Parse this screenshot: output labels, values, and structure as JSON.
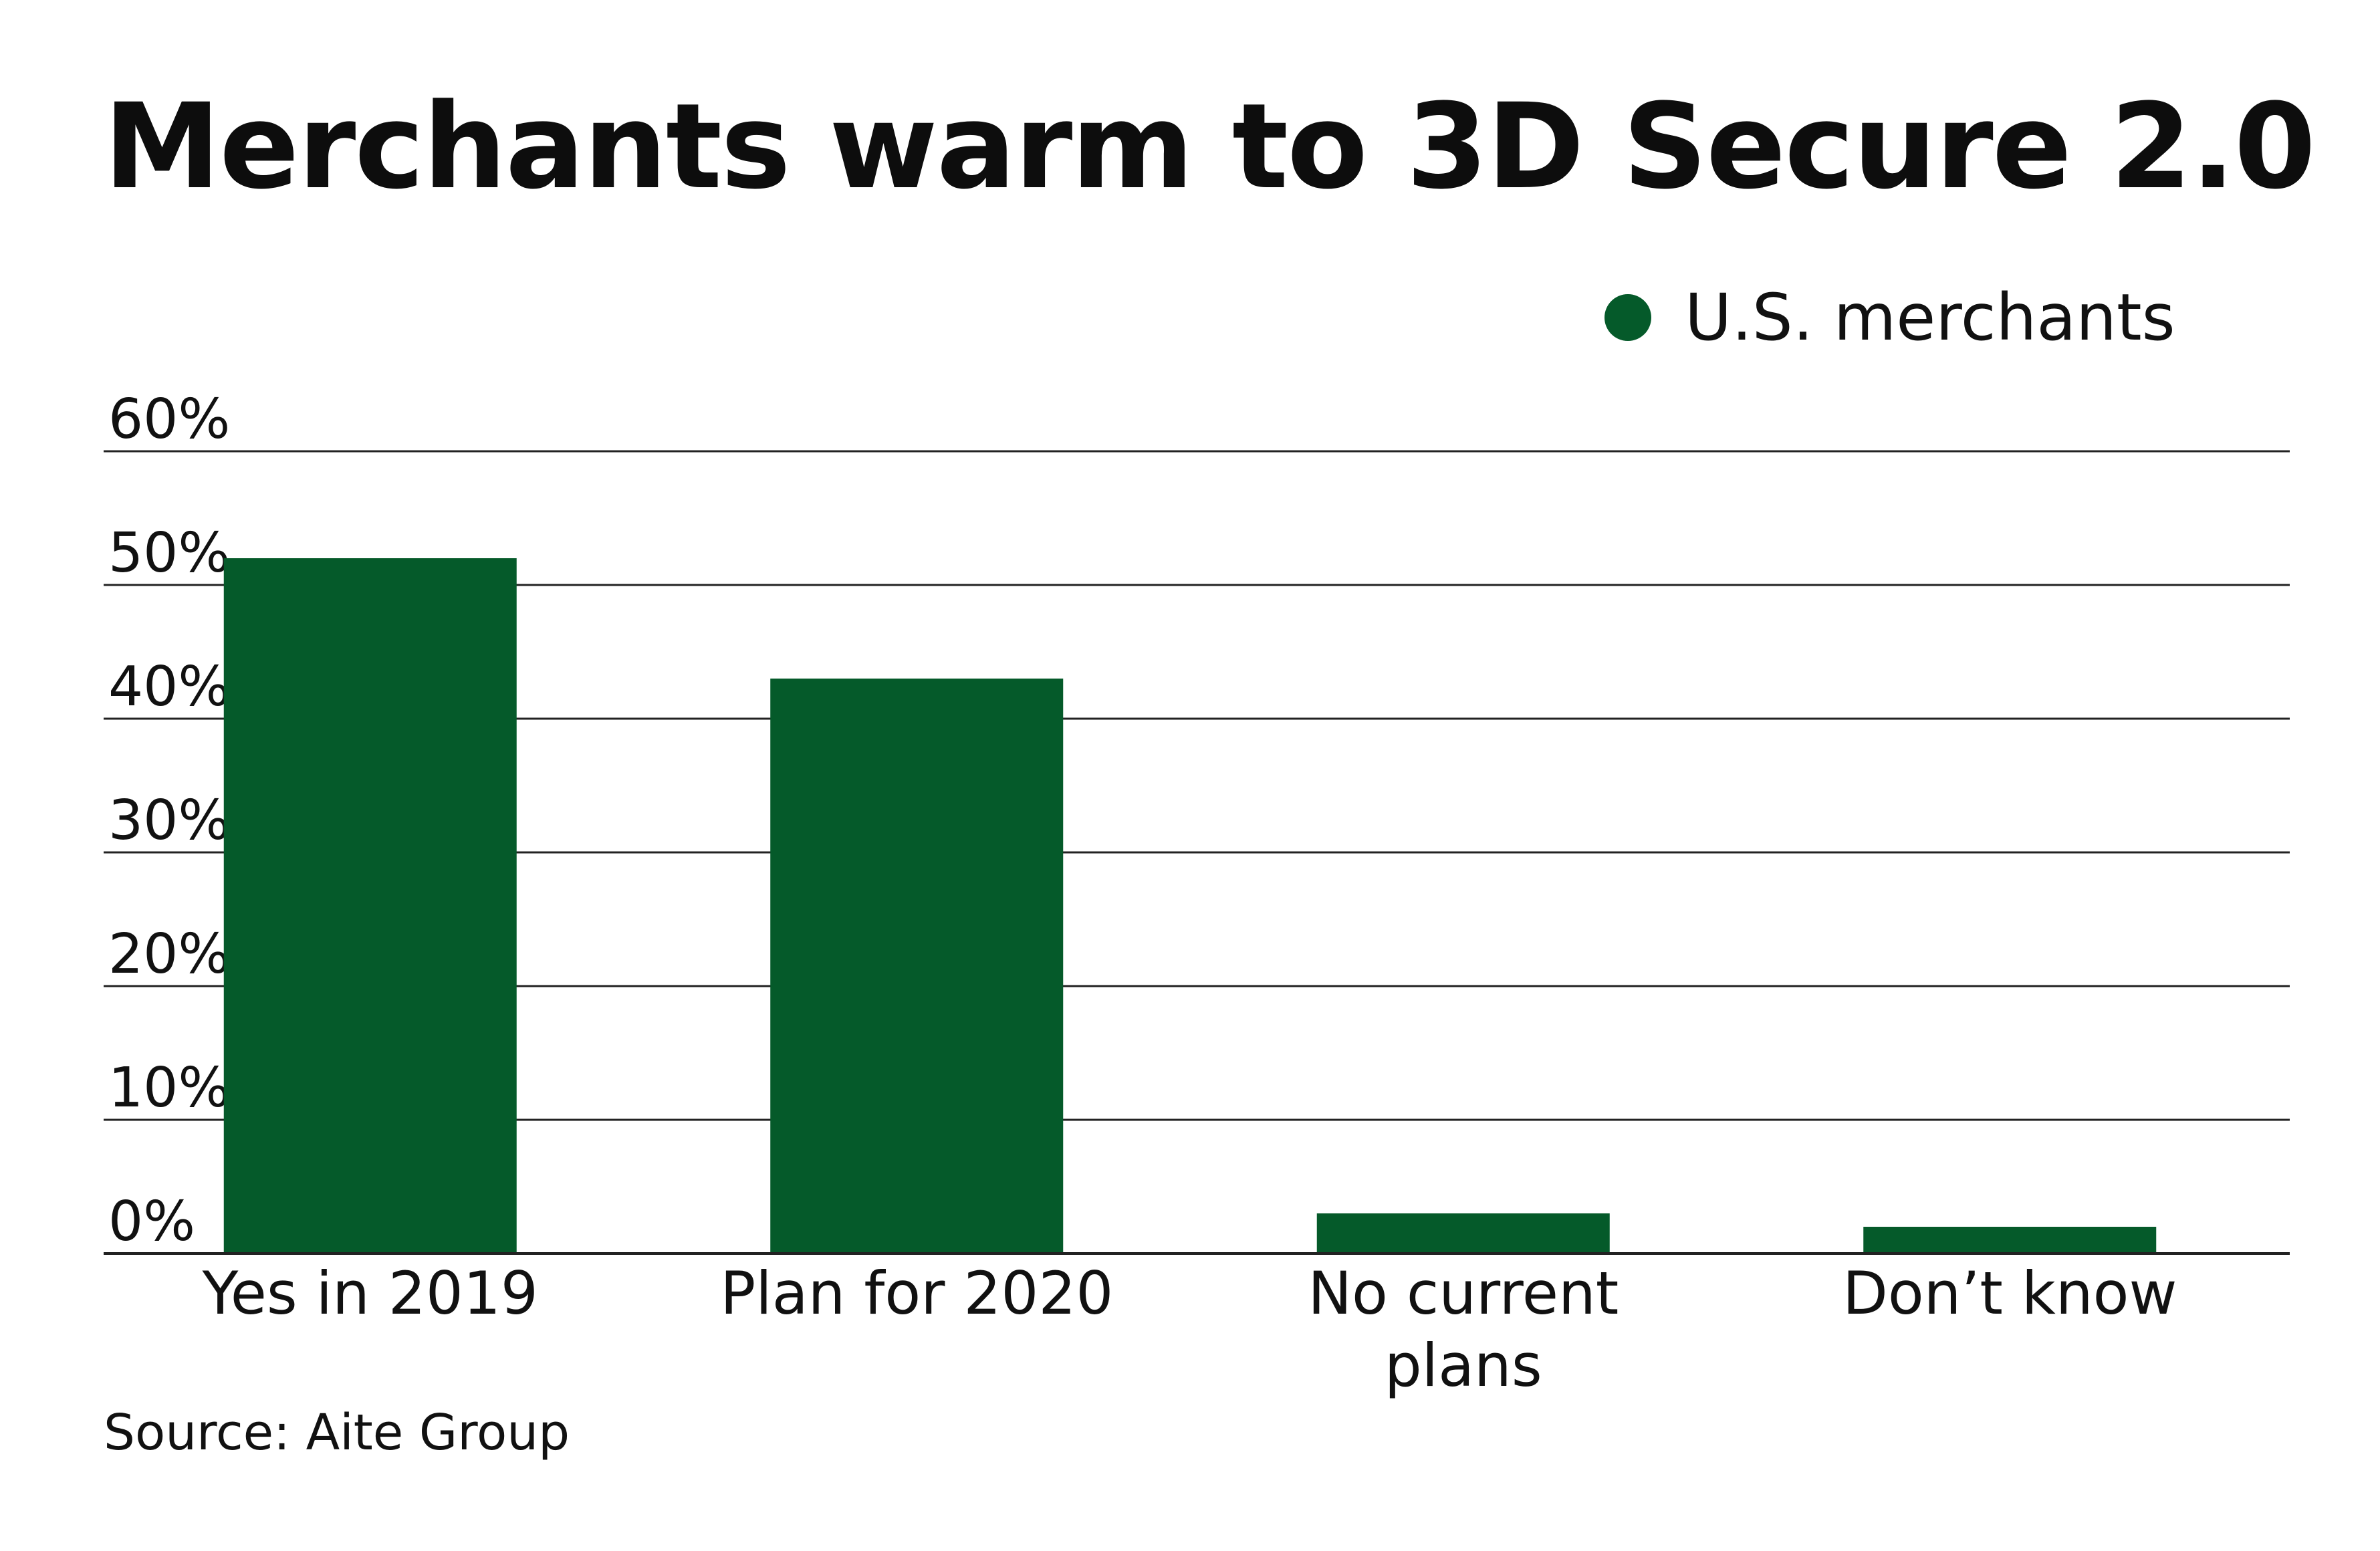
{
  "colors": {
    "bar": "#055a2a",
    "grid": "#222222",
    "text": "#111111"
  },
  "chart_data": {
    "type": "bar",
    "title": "Merchants warm to 3D Secure 2.0",
    "categories": [
      "Yes in 2019",
      "Plan for 2020",
      "No current plans",
      "Don’t know"
    ],
    "category_lines": [
      [
        "Yes in 2019"
      ],
      [
        "Plan for 2020"
      ],
      [
        "No current",
        "plans"
      ],
      [
        "Don’t know"
      ]
    ],
    "series": [
      {
        "name": "U.S. merchants",
        "values": [
          52,
          43,
          3,
          2
        ],
        "color": "#055a2a"
      }
    ],
    "yticks": [
      "0%",
      "10%",
      "20%",
      "30%",
      "40%",
      "50%",
      "60%"
    ],
    "ylim": [
      0,
      60
    ],
    "grid": true,
    "legend_position": "top-right",
    "source": "Source: Aite Group"
  }
}
